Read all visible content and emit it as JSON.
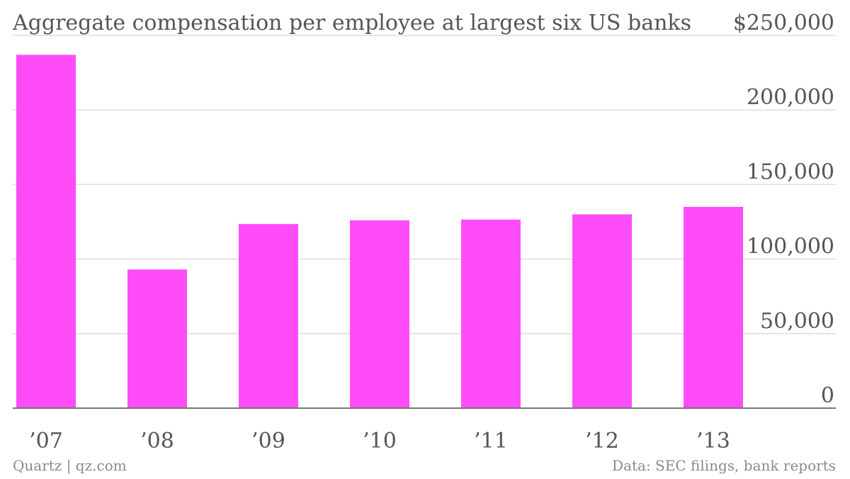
{
  "chart_data": {
    "type": "bar",
    "title": "Aggregate compensation per employee at largest six US banks",
    "categories": [
      "’07",
      "’08",
      "’09",
      "’10",
      "’11",
      "’12",
      "’13"
    ],
    "values": [
      237000,
      93000,
      123500,
      126000,
      126500,
      130000,
      135000
    ],
    "ylim": [
      0,
      250000
    ],
    "yticks": [
      0,
      50000,
      100000,
      150000,
      200000,
      250000
    ],
    "ytick_labels": [
      "0",
      "50,000",
      "100,000",
      "150,000",
      "200,000",
      "$250,000"
    ],
    "xlabel": "",
    "ylabel": "",
    "grid": true,
    "bar_color": "#ff4cf8",
    "grid_color": "#dddddd",
    "axis_color": "#777777"
  },
  "footer": {
    "source_left": "Quartz | qz.com",
    "source_right": "Data: SEC filings, bank reports"
  }
}
